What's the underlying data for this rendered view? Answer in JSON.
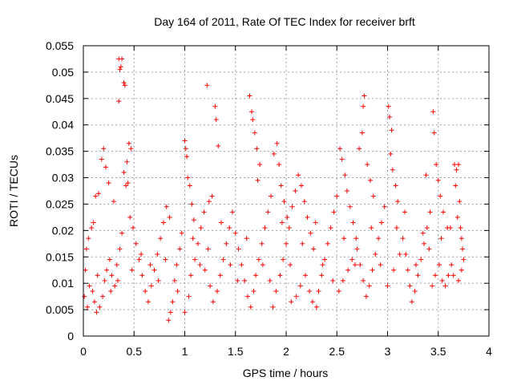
{
  "chart_data": {
    "type": "scatter",
    "title": "Day 164 of 2011, Rate Of TEC Index for receiver brft",
    "xlabel": "GPS time / hours",
    "ylabel": "ROTI / TECUs",
    "xlim": [
      0,
      4
    ],
    "ylim": [
      0,
      0.055
    ],
    "x_ticks": [
      0,
      0.5,
      1,
      1.5,
      2,
      2.5,
      3,
      3.5,
      4
    ],
    "x_tick_labels": [
      "0",
      "0.5",
      "1",
      "1.5",
      "2",
      "2.5",
      "3",
      "3.5",
      "4"
    ],
    "y_ticks": [
      0,
      0.005,
      0.01,
      0.015,
      0.02,
      0.025,
      0.03,
      0.035,
      0.04,
      0.045,
      0.05,
      0.055
    ],
    "y_tick_labels": [
      "0",
      "0.005",
      "0.01",
      "0.015",
      "0.02",
      "0.025",
      "0.03",
      "0.035",
      "0.04",
      "0.045",
      "0.05",
      "0.055"
    ],
    "grid": true,
    "marker": "+",
    "series": [
      {
        "name": "ROTI",
        "color": "#ff0000",
        "points": [
          [
            0.35,
            0.0525
          ],
          [
            0.37,
            0.051
          ],
          [
            0.38,
            0.0525
          ],
          [
            0.36,
            0.0505
          ],
          [
            0.4,
            0.048
          ],
          [
            0.41,
            0.0475
          ],
          [
            0.35,
            0.0445
          ],
          [
            0.45,
            0.0365
          ],
          [
            0.47,
            0.0355
          ],
          [
            0.43,
            0.033
          ],
          [
            0.4,
            0.031
          ],
          [
            0.42,
            0.0285
          ],
          [
            0.44,
            0.029
          ],
          [
            0.2,
            0.0355
          ],
          [
            0.18,
            0.0335
          ],
          [
            0.22,
            0.032
          ],
          [
            0.15,
            0.027
          ],
          [
            0.12,
            0.0265
          ],
          [
            0.25,
            0.029
          ],
          [
            0.3,
            0.0255
          ],
          [
            0.1,
            0.0215
          ],
          [
            0.08,
            0.0205
          ],
          [
            0.05,
            0.0185
          ],
          [
            0.03,
            0.0165
          ],
          [
            0.02,
            0.0125
          ],
          [
            0.01,
            0.0075
          ],
          [
            0.04,
            0.0055
          ],
          [
            0.06,
            0.0095
          ],
          [
            0.09,
            0.0085
          ],
          [
            0.11,
            0.0065
          ],
          [
            0.13,
            0.0045
          ],
          [
            0.16,
            0.0055
          ],
          [
            0.19,
            0.0075
          ],
          [
            0.21,
            0.0105
          ],
          [
            0.23,
            0.0125
          ],
          [
            0.26,
            0.0145
          ],
          [
            0.28,
            0.0115
          ],
          [
            0.31,
            0.0095
          ],
          [
            0.33,
            0.0135
          ],
          [
            0.36,
            0.0165
          ],
          [
            0.38,
            0.0195
          ],
          [
            0.46,
            0.0225
          ],
          [
            0.49,
            0.0205
          ],
          [
            0.52,
            0.0175
          ],
          [
            0.55,
            0.0145
          ],
          [
            0.58,
            0.0115
          ],
          [
            0.61,
            0.0085
          ],
          [
            0.64,
            0.0065
          ],
          [
            0.67,
            0.0095
          ],
          [
            0.7,
            0.0125
          ],
          [
            0.73,
            0.0155
          ],
          [
            0.76,
            0.0185
          ],
          [
            0.79,
            0.0215
          ],
          [
            0.82,
            0.0245
          ],
          [
            0.85,
            0.0225
          ],
          [
            0.84,
            0.003
          ],
          [
            0.86,
            0.0045
          ],
          [
            0.88,
            0.0065
          ],
          [
            0.9,
            0.0105
          ],
          [
            0.92,
            0.0135
          ],
          [
            0.95,
            0.0165
          ],
          [
            0.97,
            0.0195
          ],
          [
            1.0,
            0.037
          ],
          [
            1.01,
            0.0355
          ],
          [
            1.02,
            0.034
          ],
          [
            1.03,
            0.03
          ],
          [
            1.05,
            0.0285
          ],
          [
            1.07,
            0.025
          ],
          [
            1.09,
            0.022
          ],
          [
            1.0,
            0.0045
          ],
          [
            1.04,
            0.0075
          ],
          [
            1.06,
            0.0115
          ],
          [
            1.1,
            0.0145
          ],
          [
            1.13,
            0.0175
          ],
          [
            1.16,
            0.0205
          ],
          [
            1.19,
            0.0235
          ],
          [
            1.22,
            0.0475
          ],
          [
            1.3,
            0.0435
          ],
          [
            1.31,
            0.041
          ],
          [
            1.33,
            0.036
          ],
          [
            1.27,
            0.0265
          ],
          [
            1.24,
            0.0255
          ],
          [
            1.2,
            0.0125
          ],
          [
            1.25,
            0.0095
          ],
          [
            1.28,
            0.0065
          ],
          [
            1.32,
            0.0085
          ],
          [
            1.35,
            0.0115
          ],
          [
            1.38,
            0.0145
          ],
          [
            1.41,
            0.0175
          ],
          [
            1.44,
            0.0205
          ],
          [
            1.47,
            0.0235
          ],
          [
            1.5,
            0.0195
          ],
          [
            1.53,
            0.0165
          ],
          [
            1.56,
            0.0135
          ],
          [
            1.59,
            0.0105
          ],
          [
            1.62,
            0.0075
          ],
          [
            1.64,
            0.0455
          ],
          [
            1.66,
            0.0425
          ],
          [
            1.67,
            0.041
          ],
          [
            1.69,
            0.0385
          ],
          [
            1.71,
            0.0355
          ],
          [
            1.74,
            0.0325
          ],
          [
            1.72,
            0.0295
          ],
          [
            1.65,
            0.0055
          ],
          [
            1.68,
            0.0085
          ],
          [
            1.7,
            0.0115
          ],
          [
            1.73,
            0.0145
          ],
          [
            1.76,
            0.0175
          ],
          [
            1.79,
            0.0205
          ],
          [
            1.82,
            0.0235
          ],
          [
            1.85,
            0.0265
          ],
          [
            1.88,
            0.0345
          ],
          [
            1.91,
            0.0365
          ],
          [
            1.93,
            0.0325
          ],
          [
            1.95,
            0.0285
          ],
          [
            1.98,
            0.0255
          ],
          [
            2.01,
            0.0225
          ],
          [
            1.87,
            0.0055
          ],
          [
            1.9,
            0.0085
          ],
          [
            1.94,
            0.0115
          ],
          [
            1.97,
            0.0145
          ],
          [
            2.0,
            0.0175
          ],
          [
            2.03,
            0.0205
          ],
          [
            2.06,
            0.0245
          ],
          [
            2.09,
            0.0275
          ],
          [
            2.12,
            0.0305
          ],
          [
            2.15,
            0.0285
          ],
          [
            2.18,
            0.0255
          ],
          [
            2.21,
            0.0225
          ],
          [
            2.24,
            0.0195
          ],
          [
            2.27,
            0.0165
          ],
          [
            2.05,
            0.0065
          ],
          [
            2.1,
            0.0075
          ],
          [
            2.14,
            0.0095
          ],
          [
            2.19,
            0.0115
          ],
          [
            2.23,
            0.0085
          ],
          [
            2.26,
            0.0065
          ],
          [
            2.3,
            0.0055
          ],
          [
            2.32,
            0.0085
          ],
          [
            2.35,
            0.0115
          ],
          [
            2.38,
            0.0145
          ],
          [
            2.41,
            0.0175
          ],
          [
            2.44,
            0.0205
          ],
          [
            2.47,
            0.0235
          ],
          [
            2.5,
            0.0265
          ],
          [
            2.53,
            0.0355
          ],
          [
            2.55,
            0.0335
          ],
          [
            2.58,
            0.0305
          ],
          [
            2.6,
            0.0275
          ],
          [
            2.63,
            0.0245
          ],
          [
            2.66,
            0.0215
          ],
          [
            2.69,
            0.0185
          ],
          [
            2.52,
            0.0085
          ],
          [
            2.56,
            0.0105
          ],
          [
            2.61,
            0.0125
          ],
          [
            2.65,
            0.0145
          ],
          [
            2.7,
            0.0165
          ],
          [
            2.73,
            0.0135
          ],
          [
            2.76,
            0.0105
          ],
          [
            2.77,
            0.0455
          ],
          [
            2.76,
            0.0435
          ],
          [
            2.75,
            0.0385
          ],
          [
            2.72,
            0.0355
          ],
          [
            2.8,
            0.0325
          ],
          [
            2.83,
            0.0295
          ],
          [
            2.86,
            0.0265
          ],
          [
            2.79,
            0.0075
          ],
          [
            2.82,
            0.0095
          ],
          [
            2.85,
            0.0125
          ],
          [
            2.88,
            0.0155
          ],
          [
            2.91,
            0.0185
          ],
          [
            2.94,
            0.0215
          ],
          [
            2.97,
            0.0245
          ],
          [
            3.01,
            0.0435
          ],
          [
            3.02,
            0.0415
          ],
          [
            3.04,
            0.039
          ],
          [
            3.03,
            0.0345
          ],
          [
            3.05,
            0.0315
          ],
          [
            3.08,
            0.0285
          ],
          [
            3.1,
            0.0255
          ],
          [
            3.0,
            0.0095
          ],
          [
            3.06,
            0.0125
          ],
          [
            3.12,
            0.0155
          ],
          [
            3.15,
            0.0185
          ],
          [
            3.18,
            0.0155
          ],
          [
            3.2,
            0.0125
          ],
          [
            3.22,
            0.0095
          ],
          [
            3.24,
            0.0065
          ],
          [
            3.27,
            0.0085
          ],
          [
            3.3,
            0.0115
          ],
          [
            3.33,
            0.0145
          ],
          [
            3.36,
            0.0175
          ],
          [
            3.39,
            0.0205
          ],
          [
            3.42,
            0.0235
          ],
          [
            3.38,
            0.0305
          ],
          [
            3.45,
            0.0425
          ],
          [
            3.46,
            0.0385
          ],
          [
            3.48,
            0.0325
          ],
          [
            3.5,
            0.0295
          ],
          [
            3.52,
            0.0265
          ],
          [
            3.55,
            0.0235
          ],
          [
            3.44,
            0.0095
          ],
          [
            3.47,
            0.0115
          ],
          [
            3.51,
            0.0135
          ],
          [
            3.54,
            0.0105
          ],
          [
            3.57,
            0.0095
          ],
          [
            3.6,
            0.0115
          ],
          [
            3.63,
            0.0135
          ],
          [
            3.66,
            0.0325
          ],
          [
            3.68,
            0.0315
          ],
          [
            3.7,
            0.0325
          ],
          [
            3.67,
            0.0285
          ],
          [
            3.71,
            0.0255
          ],
          [
            3.69,
            0.0225
          ],
          [
            3.72,
            0.0205
          ],
          [
            3.73,
            0.0185
          ],
          [
            3.74,
            0.0165
          ],
          [
            3.75,
            0.0145
          ],
          [
            3.73,
            0.0125
          ],
          [
            3.7,
            0.0105
          ],
          [
            3.65,
            0.0115
          ],
          [
            3.62,
            0.0205
          ],
          [
            0.14,
            0.0115
          ],
          [
            0.27,
            0.0085
          ],
          [
            0.34,
            0.0105
          ],
          [
            0.48,
            0.0125
          ],
          [
            0.57,
            0.0155
          ],
          [
            0.66,
            0.0135
          ],
          [
            0.74,
            0.0105
          ],
          [
            0.81,
            0.0145
          ],
          [
            0.93,
            0.0085
          ],
          [
            1.08,
            0.0185
          ],
          [
            1.15,
            0.0135
          ],
          [
            1.23,
            0.0165
          ],
          [
            1.36,
            0.0215
          ],
          [
            1.45,
            0.0135
          ],
          [
            1.52,
            0.0105
          ],
          [
            1.61,
            0.0185
          ],
          [
            1.77,
            0.0135
          ],
          [
            1.84,
            0.0105
          ],
          [
            1.96,
            0.0215
          ],
          [
            2.04,
            0.0135
          ],
          [
            2.16,
            0.0175
          ],
          [
            2.29,
            0.0215
          ],
          [
            2.36,
            0.0135
          ],
          [
            2.46,
            0.0105
          ],
          [
            2.57,
            0.0185
          ],
          [
            2.68,
            0.0135
          ],
          [
            2.84,
            0.0205
          ],
          [
            2.93,
            0.0135
          ],
          [
            3.09,
            0.0205
          ],
          [
            3.17,
            0.0235
          ],
          [
            3.28,
            0.0135
          ],
          [
            3.35,
            0.0195
          ],
          [
            3.41,
            0.0165
          ],
          [
            3.53,
            0.0185
          ],
          [
            3.59,
            0.0205
          ]
        ]
      }
    ]
  }
}
